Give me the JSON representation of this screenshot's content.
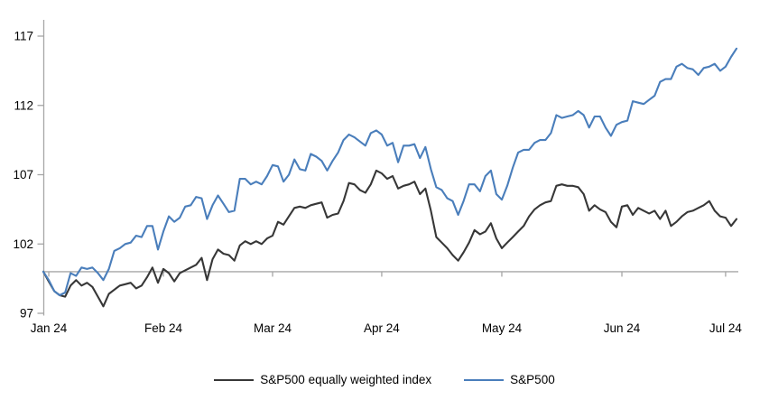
{
  "chart_data": {
    "type": "line",
    "title": "",
    "xlabel": "",
    "ylabel": "",
    "ylim": [
      97,
      117
    ],
    "y_ticks": [
      97,
      102,
      107,
      112,
      117
    ],
    "x_tick_labels": [
      "Jan 24",
      "Feb 24",
      "Mar 24",
      "Apr 24",
      "May 24",
      "Jun 24",
      "Jul 24"
    ],
    "x_tick_indices": [
      1,
      22,
      42,
      62,
      84,
      106,
      125
    ],
    "n_points": 128,
    "baseline_value": 100,
    "grid": "off",
    "legend_position": "bottom",
    "colors": {
      "axis": "#a6a6a6",
      "text": "#000000"
    },
    "series": [
      {
        "name": "S&P500 equally weighted index",
        "color": "#373737",
        "values": [
          100.0,
          99.3,
          98.6,
          98.3,
          98.2,
          99.0,
          99.4,
          99.0,
          99.2,
          98.9,
          98.2,
          97.5,
          98.4,
          98.7,
          99.0,
          99.1,
          99.2,
          98.8,
          99.0,
          99.6,
          100.3,
          99.2,
          100.2,
          99.9,
          99.3,
          99.9,
          100.1,
          100.3,
          100.5,
          101.0,
          99.4,
          100.9,
          101.6,
          101.3,
          101.2,
          100.8,
          101.9,
          102.2,
          102.0,
          102.2,
          102.0,
          102.4,
          102.6,
          103.6,
          103.4,
          104.0,
          104.6,
          104.7,
          104.6,
          104.8,
          104.9,
          105.0,
          103.9,
          104.1,
          104.2,
          105.1,
          106.4,
          106.3,
          105.9,
          105.7,
          106.3,
          107.3,
          107.1,
          106.7,
          106.9,
          106.0,
          106.2,
          106.3,
          106.5,
          105.6,
          106.0,
          104.4,
          102.5,
          102.1,
          101.7,
          101.2,
          100.8,
          101.4,
          102.1,
          103.0,
          102.7,
          102.9,
          103.5,
          102.4,
          101.7,
          102.1,
          102.5,
          102.9,
          103.3,
          104.0,
          104.5,
          104.8,
          105.0,
          105.1,
          106.2,
          106.3,
          106.2,
          106.2,
          106.1,
          105.6,
          104.4,
          104.8,
          104.5,
          104.3,
          103.6,
          103.2,
          104.7,
          104.8,
          104.1,
          104.6,
          104.4,
          104.2,
          104.4,
          103.8,
          104.4,
          103.3,
          103.6,
          104.0,
          104.3,
          104.4,
          104.6,
          104.8,
          105.1,
          104.4,
          104.0,
          103.9,
          103.3,
          103.8
        ]
      },
      {
        "name": "S&P500",
        "color": "#4a7ebb",
        "values": [
          100.0,
          99.4,
          98.6,
          98.3,
          98.5,
          99.9,
          99.7,
          100.3,
          100.2,
          100.3,
          99.9,
          99.4,
          100.2,
          101.5,
          101.7,
          102.0,
          102.1,
          102.6,
          102.5,
          103.3,
          103.3,
          101.6,
          102.9,
          104.0,
          103.6,
          103.9,
          104.7,
          104.8,
          105.4,
          105.3,
          103.8,
          104.8,
          105.5,
          104.9,
          104.3,
          104.4,
          106.7,
          106.7,
          106.3,
          106.5,
          106.3,
          106.9,
          107.7,
          107.6,
          106.5,
          107.0,
          108.1,
          107.4,
          107.3,
          108.5,
          108.3,
          108.0,
          107.3,
          108.0,
          108.6,
          109.5,
          109.9,
          109.7,
          109.4,
          109.1,
          110.0,
          110.2,
          109.9,
          109.1,
          109.3,
          107.9,
          109.1,
          109.1,
          109.2,
          108.2,
          109.0,
          107.4,
          106.1,
          105.9,
          105.3,
          105.1,
          104.1,
          105.1,
          106.3,
          106.3,
          105.8,
          106.9,
          107.3,
          105.6,
          105.2,
          106.2,
          107.5,
          108.6,
          108.8,
          108.8,
          109.3,
          109.5,
          109.5,
          110.0,
          111.3,
          111.1,
          111.2,
          111.3,
          111.6,
          111.3,
          110.4,
          111.2,
          111.2,
          110.4,
          109.8,
          110.6,
          110.8,
          110.9,
          112.3,
          112.2,
          112.1,
          112.4,
          112.7,
          113.7,
          113.9,
          113.9,
          114.8,
          115.0,
          114.7,
          114.6,
          114.2,
          114.7,
          114.8,
          115.0,
          114.5,
          114.8,
          115.5,
          116.1
        ]
      }
    ]
  }
}
